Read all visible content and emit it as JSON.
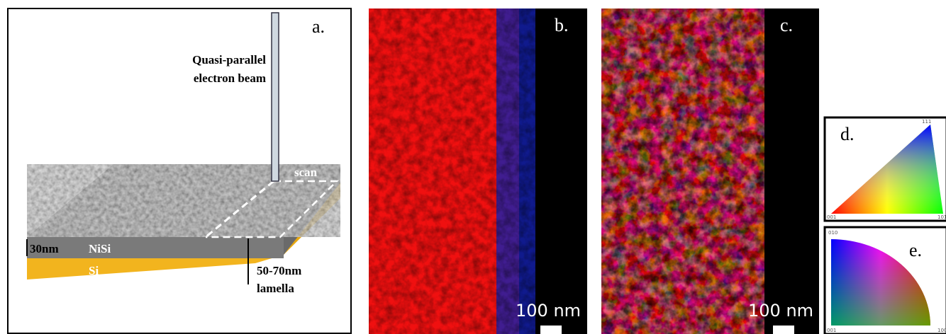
{
  "panels": {
    "a": {
      "label": "a.",
      "beam_label": [
        "Quasi-parallel",
        "electron beam"
      ],
      "scan": "scan",
      "thickness": "30nm",
      "layer_top": "NiSi",
      "layer_bottom": "Si",
      "lamella_thickness": "50-70nm",
      "lamella": "lamella"
    },
    "b": {
      "label": "b.",
      "scale_bar": "100 nm"
    },
    "c": {
      "label": "c.",
      "scale_bar": "100 nm"
    },
    "d": {
      "label": "d.",
      "corners": [
        "111",
        "001",
        "101"
      ]
    },
    "e": {
      "label": "e.",
      "corners": [
        "010",
        "001",
        "100"
      ]
    }
  }
}
